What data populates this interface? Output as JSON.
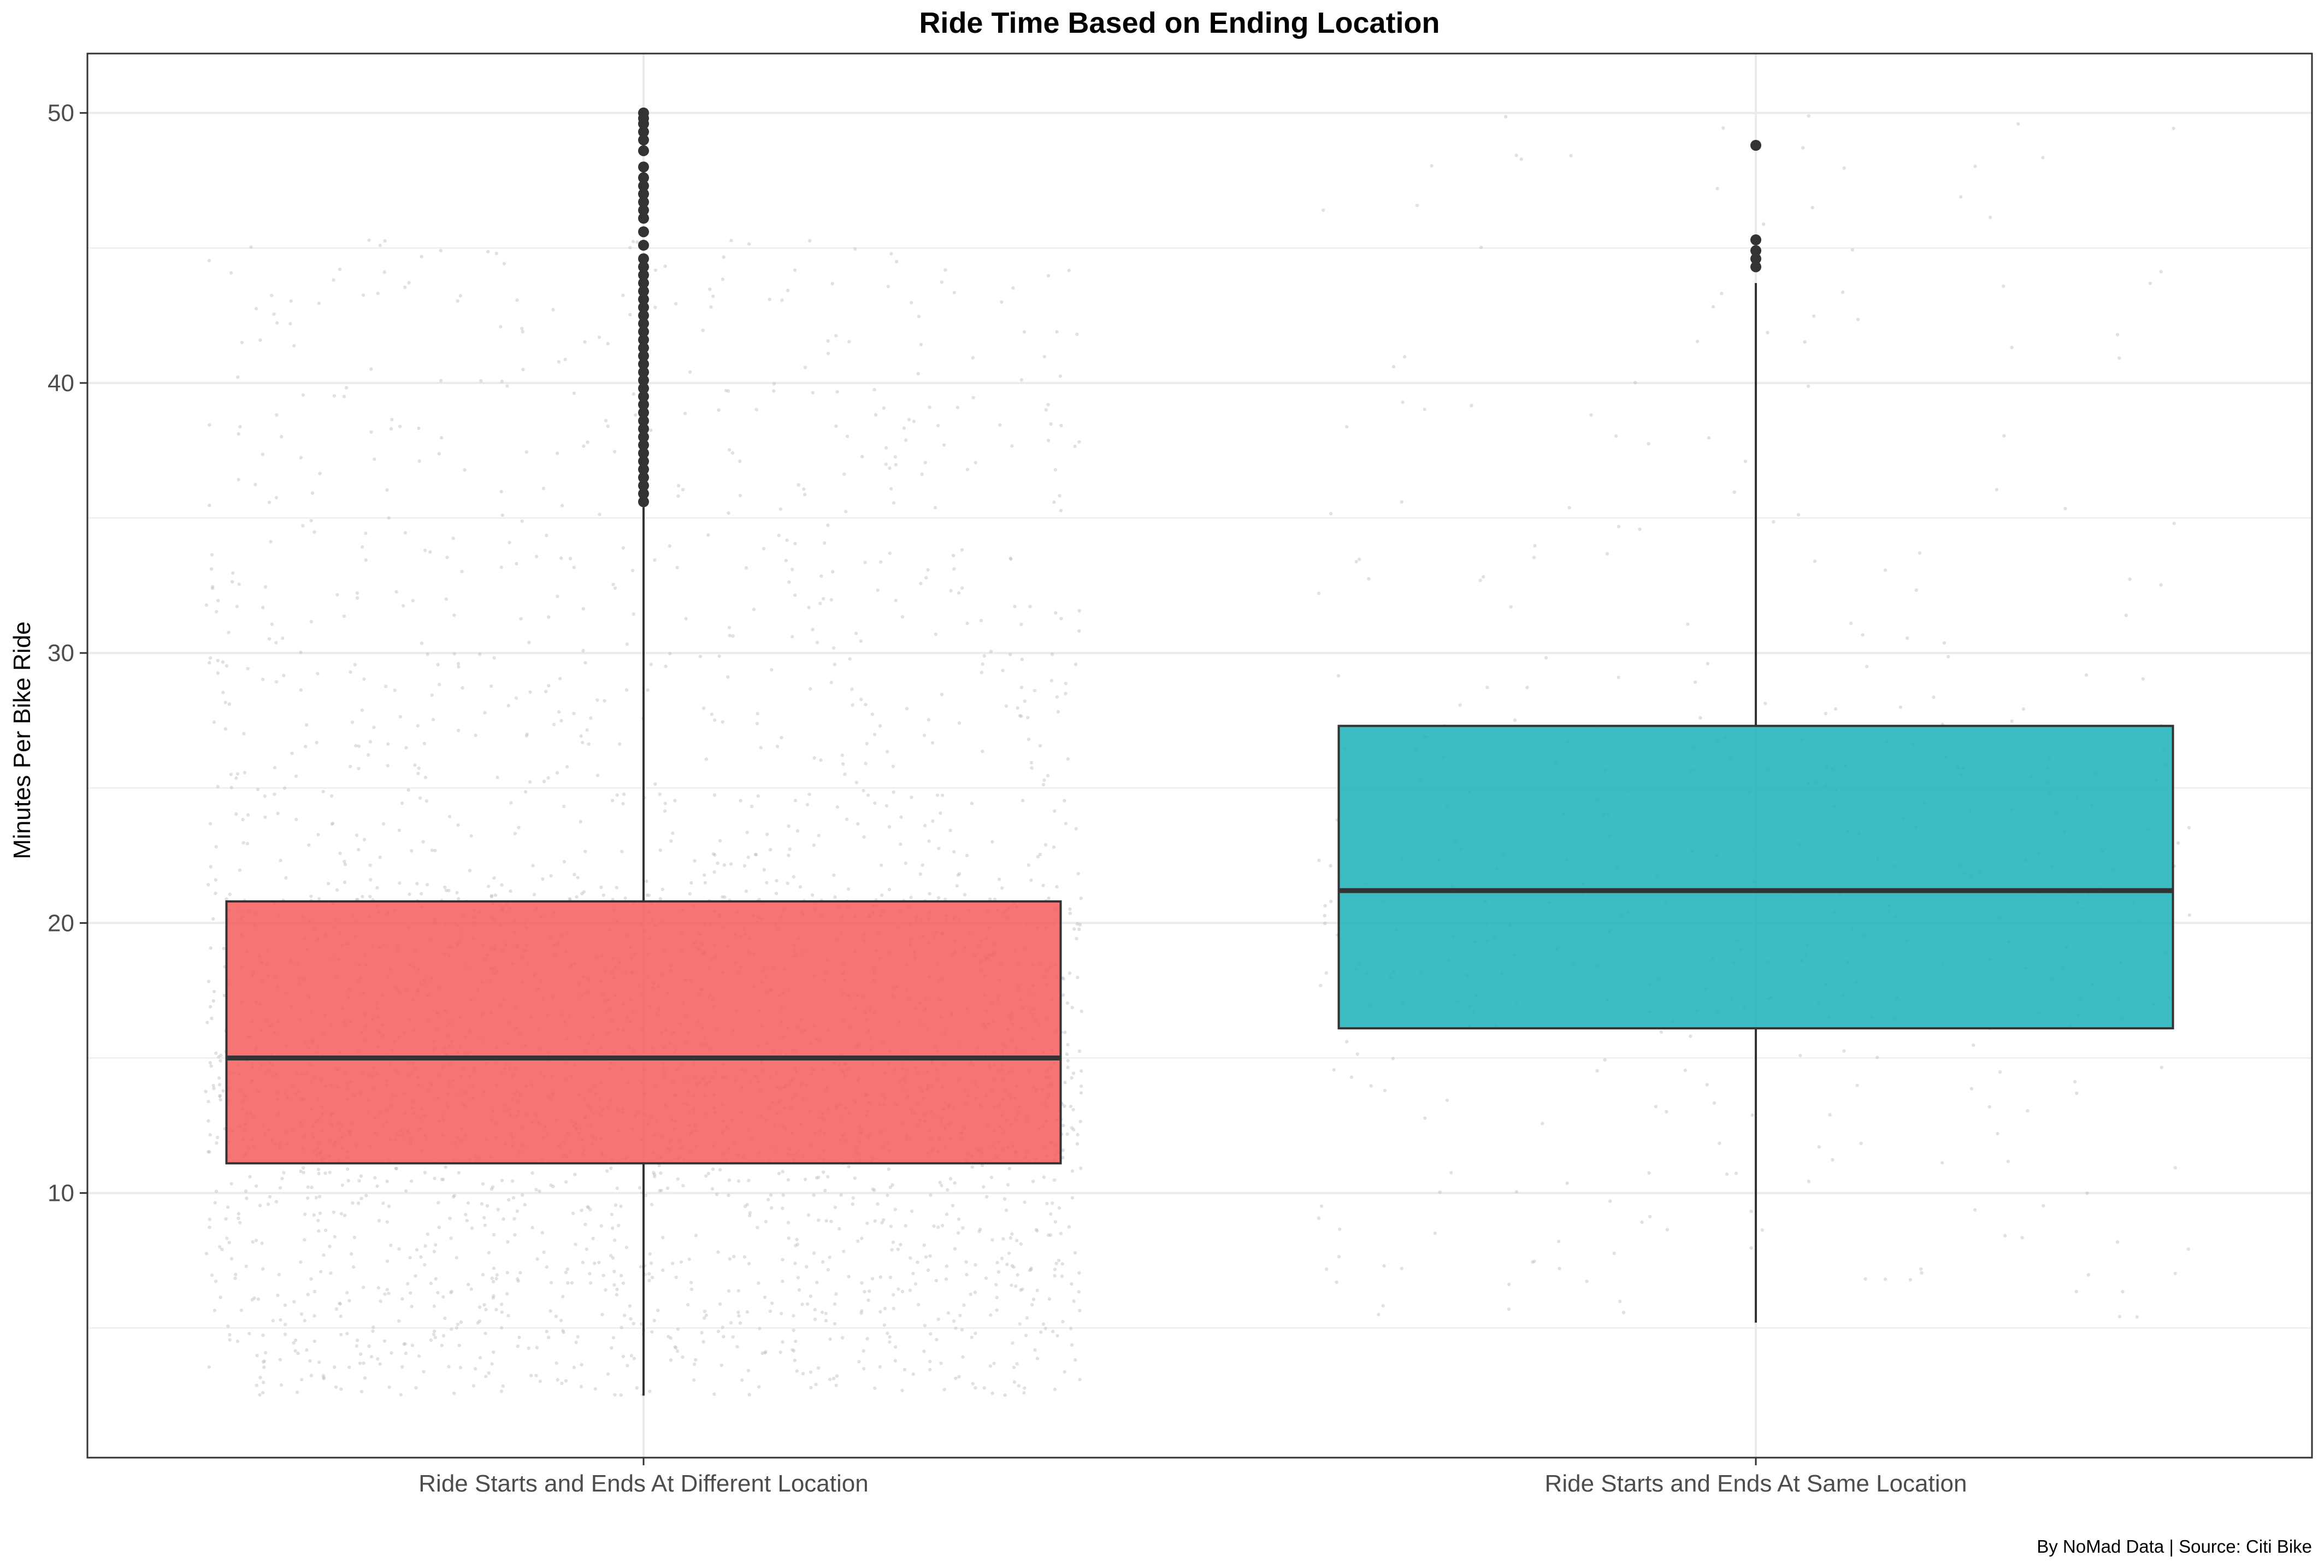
{
  "chart_data": {
    "type": "boxplot",
    "title": "Ride Time Based on Ending Location",
    "xlabel": "",
    "ylabel": "Minutes Per Bike Ride",
    "caption": "By NoMad Data | Source: Citi Bike",
    "ylim": [
      0.2,
      52.2
    ],
    "y_ticks": [
      10,
      20,
      30,
      40,
      50
    ],
    "y_minor_ticks": [
      5,
      15,
      25,
      35,
      45
    ],
    "grid": true,
    "legend": "none",
    "jitter_points": true,
    "categories": [
      "Ride Starts and Ends At Different Location",
      "Ride Starts and Ends At Same Location"
    ],
    "boxes": [
      {
        "category": "Ride Starts and Ends At Different Location",
        "color": "#F45D5C",
        "whisker_low": 2.5,
        "q1": 11.1,
        "median": 15.0,
        "q3": 20.8,
        "whisker_high": 35.4,
        "outliers": [
          35.6,
          35.9,
          36.2,
          36.5,
          36.8,
          37.1,
          37.4,
          37.7,
          38.0,
          38.3,
          38.6,
          38.9,
          39.2,
          39.5,
          39.8,
          40.1,
          40.4,
          40.7,
          41.0,
          41.3,
          41.6,
          41.9,
          42.2,
          42.5,
          42.8,
          43.1,
          43.4,
          43.7,
          44.0,
          44.3,
          44.6,
          45.1,
          45.6,
          46.1,
          46.4,
          46.7,
          47.0,
          47.3,
          47.6,
          48.0,
          48.6,
          49.0,
          49.3,
          49.6,
          49.8,
          50.0
        ]
      },
      {
        "category": "Ride Starts and Ends At Same Location",
        "color": "#1AB2B7",
        "whisker_low": 5.2,
        "q1": 16.1,
        "median": 21.2,
        "q3": 27.3,
        "whisker_high": 43.7,
        "outliers": [
          44.3,
          44.6,
          44.9,
          45.3,
          48.8
        ]
      }
    ],
    "colors": {
      "border": "#333333",
      "grid": "#ebebeb",
      "jitter": "#bdbdbd"
    }
  }
}
